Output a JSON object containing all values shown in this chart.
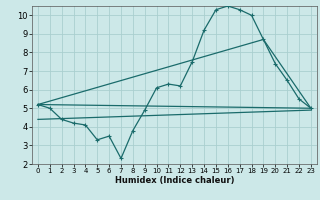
{
  "xlabel": "Humidex (Indice chaleur)",
  "background_color": "#cce8e8",
  "grid_color": "#aacfcf",
  "line_color": "#1a6b6b",
  "xlim": [
    -0.5,
    23.5
  ],
  "ylim": [
    2,
    10.5
  ],
  "yticks": [
    2,
    3,
    4,
    5,
    6,
    7,
    8,
    9,
    10
  ],
  "xticks": [
    0,
    1,
    2,
    3,
    4,
    5,
    6,
    7,
    8,
    9,
    10,
    11,
    12,
    13,
    14,
    15,
    16,
    17,
    18,
    19,
    20,
    21,
    22,
    23
  ],
  "line1_x": [
    0,
    1,
    2,
    3,
    4,
    5,
    6,
    7,
    8,
    9,
    10,
    11,
    12,
    13,
    14,
    15,
    16,
    17,
    18,
    19,
    20,
    21,
    22,
    23
  ],
  "line1_y": [
    5.2,
    5.0,
    4.4,
    4.2,
    4.1,
    3.3,
    3.5,
    2.3,
    3.8,
    4.9,
    6.1,
    6.3,
    6.2,
    7.5,
    9.2,
    10.3,
    10.5,
    10.3,
    10.0,
    8.7,
    7.4,
    6.5,
    5.5,
    5.0
  ],
  "line2_x": [
    0,
    23
  ],
  "line2_y": [
    5.2,
    5.0
  ],
  "line3_x": [
    0,
    19,
    23
  ],
  "line3_y": [
    5.2,
    8.7,
    5.0
  ],
  "line4_x": [
    0,
    23
  ],
  "line4_y": [
    4.4,
    4.9
  ]
}
